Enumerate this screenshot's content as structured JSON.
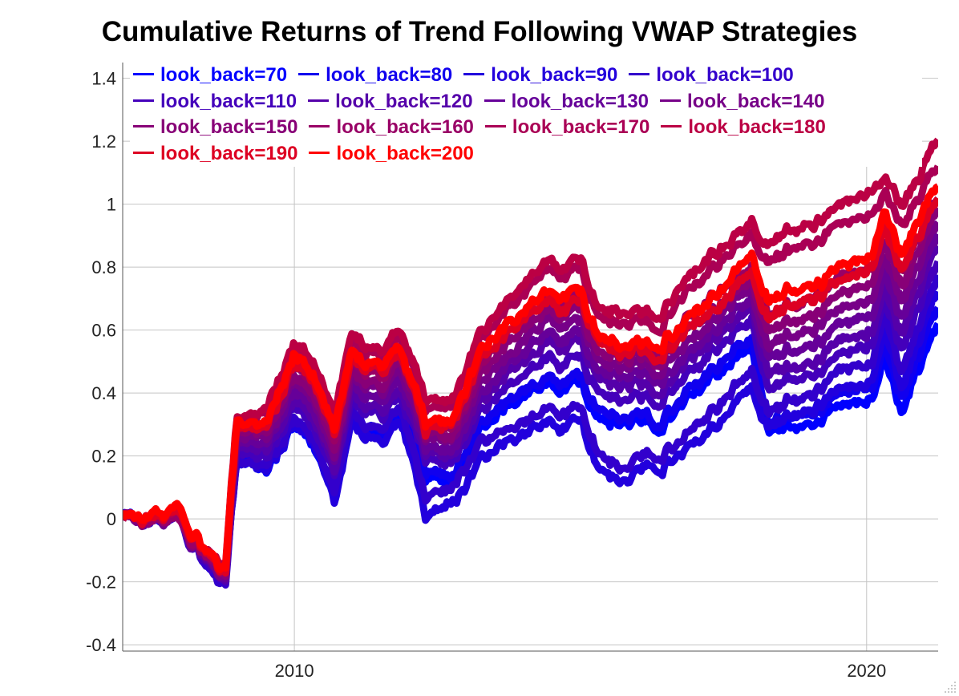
{
  "chart_data": {
    "type": "line",
    "title": "Cumulative Returns of Trend Following VWAP Strategies",
    "xlabel": "",
    "ylabel": "",
    "xlim": [
      2007.0,
      2021.25
    ],
    "ylim": [
      -0.42,
      1.45
    ],
    "x_ticks": [
      {
        "value": 2010,
        "label": "2010"
      },
      {
        "value": 2020,
        "label": "2020"
      }
    ],
    "y_ticks": [
      {
        "value": -0.4,
        "label": "-0.4"
      },
      {
        "value": -0.2,
        "label": "-0.2"
      },
      {
        "value": 0,
        "label": "0"
      },
      {
        "value": 0.2,
        "label": "0.2"
      },
      {
        "value": 0.4,
        "label": "0.4"
      },
      {
        "value": 0.6,
        "label": "0.6"
      },
      {
        "value": 0.8,
        "label": "0.8"
      },
      {
        "value": 1.0,
        "label": "1"
      },
      {
        "value": 1.2,
        "label": "1.2"
      },
      {
        "value": 1.4,
        "label": "1.4"
      }
    ],
    "grid": true,
    "legend_position": "top",
    "x": [
      2007.0,
      2008.0,
      2008.5,
      2008.8,
      2009.0,
      2009.5,
      2010.0,
      2010.4,
      2010.7,
      2011.0,
      2011.5,
      2011.9,
      2012.3,
      2012.7,
      2013.3,
      2013.9,
      2014.4,
      2015.0,
      2015.3,
      2015.8,
      2016.3,
      2016.8,
      2017.4,
      2018.0,
      2018.3,
      2019.0,
      2019.6,
      2020.1,
      2020.3,
      2020.6,
      2021.25
    ],
    "series": [
      {
        "name": "look_back=70",
        "color": "#0000ff",
        "values": [
          0.0,
          0.0,
          -0.16,
          -0.2,
          0.2,
          0.16,
          0.3,
          0.22,
          0.08,
          0.3,
          0.27,
          0.32,
          0.12,
          0.12,
          0.27,
          0.38,
          0.42,
          0.42,
          0.34,
          0.3,
          0.3,
          0.38,
          0.47,
          0.55,
          0.28,
          0.3,
          0.35,
          0.38,
          0.54,
          0.35,
          0.62
        ]
      },
      {
        "name": "look_back=80",
        "color": "#1100ee",
        "values": [
          0.0,
          0.0,
          -0.16,
          -0.21,
          0.2,
          0.17,
          0.31,
          0.23,
          0.1,
          0.31,
          0.28,
          0.33,
          0.14,
          0.14,
          0.29,
          0.4,
          0.44,
          0.44,
          0.36,
          0.32,
          0.32,
          0.4,
          0.5,
          0.57,
          0.31,
          0.33,
          0.39,
          0.42,
          0.58,
          0.39,
          0.67
        ]
      },
      {
        "name": "look_back=90",
        "color": "#2200dd",
        "values": [
          0.0,
          0.0,
          -0.17,
          -0.22,
          0.19,
          0.16,
          0.3,
          0.22,
          0.07,
          0.29,
          0.25,
          0.29,
          0.0,
          0.05,
          0.18,
          0.26,
          0.3,
          0.3,
          0.18,
          0.12,
          0.18,
          0.22,
          0.31,
          0.42,
          0.3,
          0.35,
          0.4,
          0.44,
          0.62,
          0.43,
          0.72
        ]
      },
      {
        "name": "look_back=100",
        "color": "#3300cc",
        "values": [
          0.0,
          0.0,
          -0.17,
          -0.23,
          0.2,
          0.17,
          0.32,
          0.24,
          0.1,
          0.32,
          0.29,
          0.33,
          0.05,
          0.1,
          0.23,
          0.3,
          0.34,
          0.34,
          0.22,
          0.16,
          0.22,
          0.27,
          0.36,
          0.47,
          0.35,
          0.4,
          0.46,
          0.5,
          0.67,
          0.48,
          0.77
        ]
      },
      {
        "name": "look_back=110",
        "color": "#4400bb",
        "values": [
          0.0,
          0.0,
          -0.16,
          -0.22,
          0.22,
          0.2,
          0.36,
          0.28,
          0.15,
          0.36,
          0.33,
          0.37,
          0.18,
          0.18,
          0.33,
          0.45,
          0.5,
          0.5,
          0.42,
          0.38,
          0.38,
          0.46,
          0.55,
          0.63,
          0.42,
          0.46,
          0.52,
          0.56,
          0.72,
          0.55,
          0.82
        ]
      },
      {
        "name": "look_back=120",
        "color": "#5500aa",
        "values": [
          0.0,
          0.0,
          -0.15,
          -0.22,
          0.24,
          0.22,
          0.38,
          0.3,
          0.17,
          0.38,
          0.35,
          0.39,
          0.2,
          0.2,
          0.36,
          0.49,
          0.55,
          0.55,
          0.46,
          0.42,
          0.42,
          0.5,
          0.59,
          0.67,
          0.47,
          0.5,
          0.56,
          0.6,
          0.76,
          0.6,
          0.87
        ]
      },
      {
        "name": "look_back=130",
        "color": "#660099",
        "values": [
          0.0,
          0.0,
          -0.15,
          -0.21,
          0.26,
          0.24,
          0.41,
          0.33,
          0.2,
          0.41,
          0.38,
          0.42,
          0.22,
          0.22,
          0.39,
          0.52,
          0.58,
          0.58,
          0.49,
          0.45,
          0.45,
          0.53,
          0.62,
          0.7,
          0.52,
          0.55,
          0.61,
          0.65,
          0.8,
          0.65,
          0.9
        ]
      },
      {
        "name": "look_back=140",
        "color": "#770088",
        "values": [
          0.0,
          0.0,
          -0.14,
          -0.21,
          0.27,
          0.26,
          0.44,
          0.36,
          0.22,
          0.44,
          0.41,
          0.45,
          0.24,
          0.25,
          0.42,
          0.55,
          0.62,
          0.62,
          0.52,
          0.48,
          0.48,
          0.56,
          0.65,
          0.73,
          0.56,
          0.6,
          0.66,
          0.7,
          0.85,
          0.7,
          0.94
        ]
      },
      {
        "name": "look_back=150",
        "color": "#880077",
        "values": [
          0.0,
          0.0,
          -0.14,
          -0.2,
          0.29,
          0.28,
          0.46,
          0.38,
          0.24,
          0.46,
          0.43,
          0.48,
          0.26,
          0.27,
          0.45,
          0.59,
          0.65,
          0.65,
          0.55,
          0.51,
          0.51,
          0.6,
          0.68,
          0.76,
          0.6,
          0.65,
          0.71,
          0.75,
          0.9,
          0.75,
          0.98
        ]
      },
      {
        "name": "look_back=160",
        "color": "#990066",
        "values": [
          0.0,
          0.0,
          -0.13,
          -0.19,
          0.3,
          0.3,
          0.49,
          0.41,
          0.27,
          0.49,
          0.46,
          0.5,
          0.28,
          0.29,
          0.48,
          0.62,
          0.69,
          0.69,
          0.58,
          0.54,
          0.54,
          0.63,
          0.72,
          0.8,
          0.65,
          0.7,
          0.76,
          0.8,
          0.95,
          0.8,
          1.02
        ]
      },
      {
        "name": "look_back=170",
        "color": "#aa0055",
        "values": [
          0.0,
          0.02,
          -0.12,
          -0.18,
          0.32,
          0.34,
          0.54,
          0.46,
          0.32,
          0.55,
          0.52,
          0.56,
          0.34,
          0.36,
          0.56,
          0.7,
          0.78,
          0.78,
          0.66,
          0.62,
          0.62,
          0.72,
          0.82,
          0.9,
          0.82,
          0.88,
          0.93,
          0.98,
          1.05,
          0.94,
          1.12
        ]
      },
      {
        "name": "look_back=180",
        "color": "#bb0044",
        "values": [
          0.0,
          0.02,
          -0.12,
          -0.17,
          0.33,
          0.35,
          0.56,
          0.48,
          0.34,
          0.57,
          0.54,
          0.58,
          0.36,
          0.38,
          0.58,
          0.73,
          0.81,
          0.81,
          0.69,
          0.65,
          0.65,
          0.76,
          0.86,
          0.94,
          0.88,
          0.94,
          0.99,
          1.05,
          1.1,
          1.0,
          1.2
        ]
      },
      {
        "name": "look_back=190",
        "color": "#dd0022",
        "values": [
          0.0,
          0.02,
          -0.13,
          -0.19,
          0.3,
          0.3,
          0.5,
          0.42,
          0.29,
          0.5,
          0.47,
          0.5,
          0.27,
          0.3,
          0.5,
          0.62,
          0.68,
          0.68,
          0.58,
          0.52,
          0.53,
          0.6,
          0.68,
          0.78,
          0.65,
          0.7,
          0.75,
          0.8,
          0.95,
          0.8,
          1.02
        ]
      },
      {
        "name": "look_back=200",
        "color": "#ff0000",
        "values": [
          0.0,
          0.03,
          -0.12,
          -0.18,
          0.31,
          0.31,
          0.52,
          0.44,
          0.3,
          0.52,
          0.49,
          0.52,
          0.29,
          0.32,
          0.52,
          0.65,
          0.71,
          0.71,
          0.6,
          0.54,
          0.56,
          0.63,
          0.72,
          0.84,
          0.7,
          0.74,
          0.79,
          0.84,
          1.0,
          0.85,
          1.06
        ]
      }
    ]
  }
}
